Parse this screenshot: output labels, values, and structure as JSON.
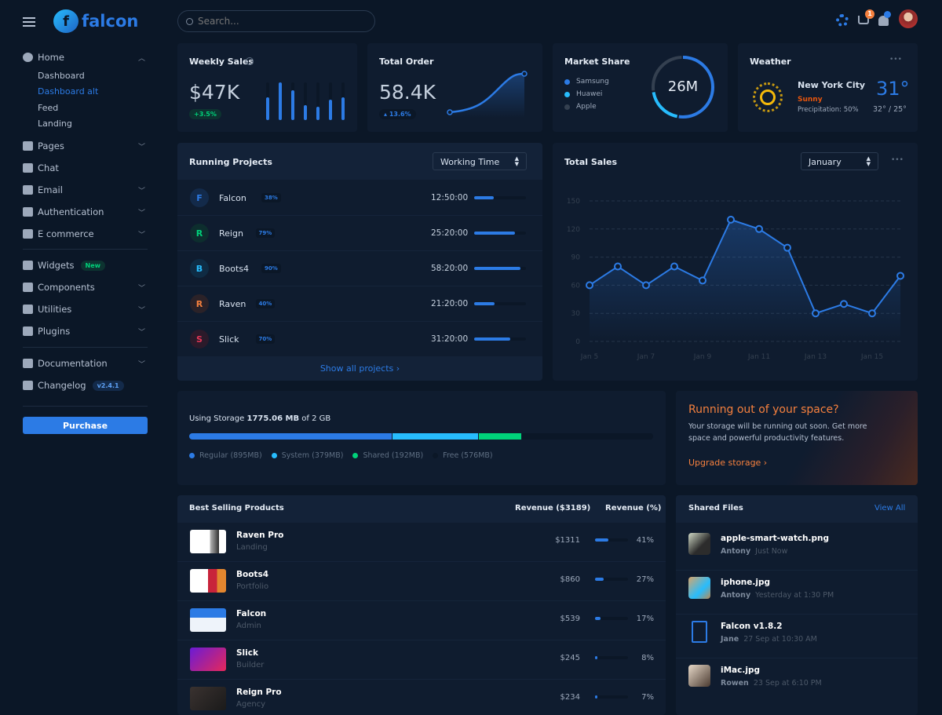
{
  "brand": {
    "name": "falcon"
  },
  "search": {
    "placeholder": "Search..."
  },
  "topbar": {
    "cart_count": "1",
    "icons": [
      "gear-icon",
      "cart-icon",
      "bell-icon",
      "user-avatar"
    ]
  },
  "sidebar": {
    "home": {
      "label": "Home",
      "subitems": [
        "Dashboard",
        "Dashboard alt",
        "Feed",
        "Landing"
      ],
      "active": "Dashboard alt"
    },
    "items": [
      {
        "label": "Pages",
        "icon": "pages-icon",
        "chevron": true
      },
      {
        "label": "Chat",
        "icon": "chat-icon",
        "chevron": false
      },
      {
        "label": "Email",
        "icon": "email-icon",
        "chevron": true
      },
      {
        "label": "Authentication",
        "icon": "lock-icon",
        "chevron": true
      },
      {
        "label": "E commerce",
        "icon": "cart-icon",
        "chevron": true
      }
    ],
    "items2": [
      {
        "label": "Widgets",
        "icon": "widgets-icon",
        "badge": "New"
      },
      {
        "label": "Components",
        "icon": "puzzle-icon",
        "chevron": true
      },
      {
        "label": "Utilities",
        "icon": "fire-icon",
        "chevron": true
      },
      {
        "label": "Plugins",
        "icon": "plug-icon",
        "chevron": true
      }
    ],
    "items3": [
      {
        "label": "Documentation",
        "icon": "book-icon",
        "chevron": true
      },
      {
        "label": "Changelog",
        "icon": "branch-icon",
        "badge": "v2.4.1"
      }
    ],
    "purchase": "Purchase"
  },
  "weekly_sales": {
    "title": "Weekly Sales",
    "value": "$47K",
    "change": "+3.5%",
    "bars": [
      0.6,
      1.0,
      0.8,
      0.4,
      0.35,
      0.55,
      0.6
    ]
  },
  "total_order": {
    "title": "Total Order",
    "value": "58.4K",
    "change": "13.6%"
  },
  "market_share": {
    "title": "Market Share",
    "center": "26M",
    "legend": [
      {
        "name": "Samsung",
        "color": "#2c7be5",
        "share": 53
      },
      {
        "name": "Huawei",
        "color": "#27bcfd",
        "share": 20
      },
      {
        "name": "Apple",
        "color": "#344050",
        "share": 27
      }
    ]
  },
  "weather": {
    "title": "Weather",
    "more": "•••",
    "city": "New York City",
    "condition": "Sunny",
    "precipitation": "Precipitation: 50%",
    "temp": "31°",
    "range": "32° / 25°"
  },
  "running_projects": {
    "title": "Running Projects",
    "select": "Working Time",
    "footer": "Show all projects ›",
    "projects": [
      {
        "initial": "F",
        "name": "Falcon",
        "percent": "38%",
        "progress": 38,
        "time": "12:50:00",
        "color": "#2c7be5",
        "bg": "#132a4a"
      },
      {
        "initial": "R",
        "name": "Reign",
        "percent": "79%",
        "progress": 79,
        "time": "25:20:00",
        "color": "#00d27a",
        "bg": "#0d2e2e"
      },
      {
        "initial": "B",
        "name": "Boots4",
        "percent": "90%",
        "progress": 90,
        "time": "58:20:00",
        "color": "#27bcfd",
        "bg": "#0f2b43"
      },
      {
        "initial": "R",
        "name": "Raven",
        "percent": "40%",
        "progress": 40,
        "time": "21:20:00",
        "color": "#f5803e",
        "bg": "#2b2228"
      },
      {
        "initial": "S",
        "name": "Slick",
        "percent": "70%",
        "progress": 70,
        "time": "31:20:00",
        "color": "#e63757",
        "bg": "#2b1a2a"
      }
    ]
  },
  "total_sales": {
    "title": "Total Sales",
    "select": "January",
    "more": "•••"
  },
  "chart_data": {
    "type": "line",
    "x": [
      "Jan 5",
      "Jan 6",
      "Jan 7",
      "Jan 8",
      "Jan 9",
      "Jan 10",
      "Jan 11",
      "Jan 12",
      "Jan 13",
      "Jan 14",
      "Jan 15",
      "Jan 16"
    ],
    "values": [
      60,
      80,
      60,
      80,
      65,
      130,
      120,
      100,
      30,
      40,
      30,
      70
    ],
    "xtick_labels": [
      "Jan 5",
      "Jan 7",
      "Jan 9",
      "Jan 11",
      "Jan 13",
      "Jan 15"
    ],
    "yticks": [
      0,
      30,
      60,
      90,
      120,
      150
    ],
    "ylim": [
      0,
      150
    ],
    "grid": true,
    "color": "#2c7be5"
  },
  "storage": {
    "label": "Using Storage",
    "used": "1775.06 MB",
    "of": "of 2 GB",
    "segments": [
      {
        "label": "Regular (895MB)",
        "mb": 895,
        "color": "#2c7be5"
      },
      {
        "label": "System (379MB)",
        "mb": 379,
        "color": "#27bcfd"
      },
      {
        "label": "Shared (192MB)",
        "mb": 192,
        "color": "#00d27a"
      },
      {
        "label": "Free (576MB)",
        "mb": 576,
        "color": "#0b1727"
      }
    ]
  },
  "space_promo": {
    "title": "Running out of your space?",
    "text": "Your storage will be running out soon. Get more space and powerful productivity features.",
    "link": "Upgrade storage ›"
  },
  "products": {
    "title": "Best Selling Products",
    "col_revenue": "Revenue ($3189)",
    "col_percent": "Revenue (%)",
    "rows": [
      {
        "name": "Raven Pro",
        "category": "Landing",
        "revenue": "$1311",
        "percent": "41%",
        "progress": 41
      },
      {
        "name": "Boots4",
        "category": "Portfolio",
        "revenue": "$860",
        "percent": "27%",
        "progress": 27
      },
      {
        "name": "Falcon",
        "category": "Admin",
        "revenue": "$539",
        "percent": "17%",
        "progress": 17
      },
      {
        "name": "Slick",
        "category": "Builder",
        "revenue": "$245",
        "percent": "8%",
        "progress": 8
      },
      {
        "name": "Reign Pro",
        "category": "Agency",
        "revenue": "$234",
        "percent": "7%",
        "progress": 7
      }
    ]
  },
  "shared_files": {
    "title": "Shared Files",
    "view_all": "View All",
    "files": [
      {
        "name": "apple-smart-watch.png",
        "user": "Antony",
        "time": "Just Now"
      },
      {
        "name": "iphone.jpg",
        "user": "Antony",
        "time": "Yesterday at 1:30 PM"
      },
      {
        "name": "Falcon v1.8.2",
        "user": "Jane",
        "time": "27 Sep at 10:30 AM"
      },
      {
        "name": "iMac.jpg",
        "user": "Rowen",
        "time": "23 Sep at 6:10 PM"
      }
    ]
  }
}
